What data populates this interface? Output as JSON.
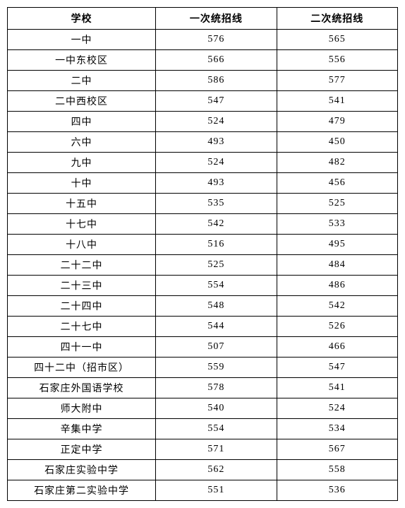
{
  "table": {
    "columns": [
      "学校",
      "一次统招线",
      "二次统招线"
    ],
    "rows": [
      [
        "一中",
        "576",
        "565"
      ],
      [
        "一中东校区",
        "566",
        "556"
      ],
      [
        "二中",
        "586",
        "577"
      ],
      [
        "二中西校区",
        "547",
        "541"
      ],
      [
        "四中",
        "524",
        "479"
      ],
      [
        "六中",
        "493",
        "450"
      ],
      [
        "九中",
        "524",
        "482"
      ],
      [
        "十中",
        "493",
        "456"
      ],
      [
        "十五中",
        "535",
        "525"
      ],
      [
        "十七中",
        "542",
        "533"
      ],
      [
        "十八中",
        "516",
        "495"
      ],
      [
        "二十二中",
        "525",
        "484"
      ],
      [
        "二十三中",
        "554",
        "486"
      ],
      [
        "二十四中",
        "548",
        "542"
      ],
      [
        "二十七中",
        "544",
        "526"
      ],
      [
        "四十一中",
        "507",
        "466"
      ],
      [
        "四十二中（招市区）",
        "559",
        "547"
      ],
      [
        "石家庄外国语学校",
        "578",
        "541"
      ],
      [
        "师大附中",
        "540",
        "524"
      ],
      [
        "辛集中学",
        "554",
        "534"
      ],
      [
        "正定中学",
        "571",
        "567"
      ],
      [
        "石家庄实验中学",
        "562",
        "558"
      ],
      [
        "石家庄第二实验中学",
        "551",
        "536"
      ]
    ]
  }
}
